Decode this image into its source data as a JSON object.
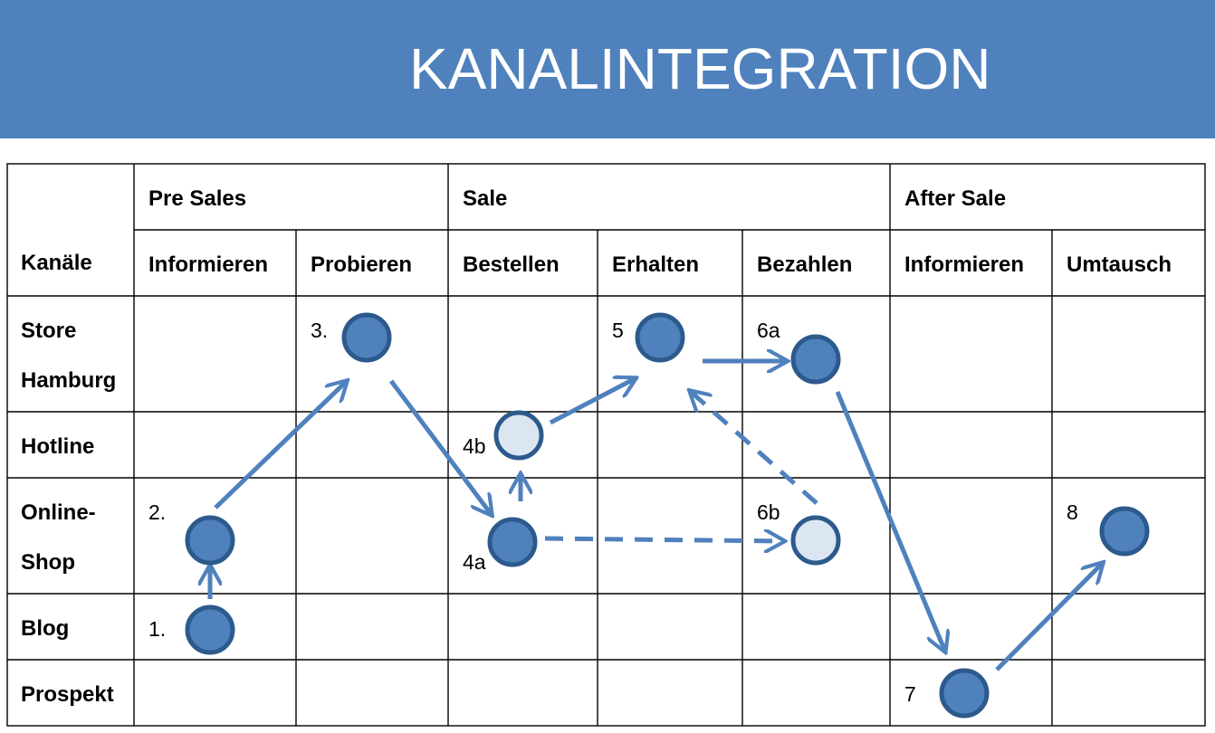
{
  "title": "KANALINTEGRATION",
  "phases": [
    "Pre Sales",
    "Sale",
    "After Sale"
  ],
  "corner_label": "Kanäle",
  "steps": [
    "Informieren",
    "Probieren",
    "Bestellen",
    "Erhalten",
    "Bezahlen",
    "Informieren",
    "Umtausch"
  ],
  "channels": [
    {
      "line1": "Store",
      "line2": "Hamburg"
    },
    {
      "line1": "Hotline",
      "line2": ""
    },
    {
      "line1": "Online-",
      "line2": "Shop"
    },
    {
      "line1": "Blog",
      "line2": ""
    },
    {
      "line1": "Prospekt",
      "line2": ""
    }
  ],
  "nodes": [
    {
      "id": "n1",
      "label": "1.",
      "style": "solid"
    },
    {
      "id": "n2",
      "label": "2.",
      "style": "solid"
    },
    {
      "id": "n3",
      "label": "3.",
      "style": "solid"
    },
    {
      "id": "n4a",
      "label": "4a",
      "style": "solid"
    },
    {
      "id": "n4b",
      "label": "4b",
      "style": "light"
    },
    {
      "id": "n5",
      "label": "5",
      "style": "solid"
    },
    {
      "id": "n6a",
      "label": "6a",
      "style": "solid"
    },
    {
      "id": "n6b",
      "label": "6b",
      "style": "light"
    },
    {
      "id": "n7",
      "label": "7",
      "style": "solid"
    },
    {
      "id": "n8",
      "label": "8",
      "style": "solid"
    }
  ],
  "edges": [
    {
      "from": "n1",
      "to": "n2",
      "style": "solid"
    },
    {
      "from": "n2",
      "to": "n3",
      "style": "solid"
    },
    {
      "from": "n3",
      "to": "n4a",
      "style": "solid"
    },
    {
      "from": "n4a",
      "to": "n4b",
      "style": "solid"
    },
    {
      "from": "n4a",
      "to": "n6b",
      "style": "dashed"
    },
    {
      "from": "n4b",
      "to": "n5",
      "style": "solid"
    },
    {
      "from": "n6b",
      "to": "n5",
      "style": "dashed"
    },
    {
      "from": "n5",
      "to": "n6a",
      "style": "solid"
    },
    {
      "from": "n6a",
      "to": "n7",
      "style": "solid"
    },
    {
      "from": "n7",
      "to": "n8",
      "style": "solid"
    }
  ],
  "colors": {
    "banner": "#4f81bd",
    "arrow": "#4f81bd",
    "node_fill": "#4f81bd",
    "node_fill_light": "#dce6f2",
    "node_stroke": "#2d5a8c"
  }
}
